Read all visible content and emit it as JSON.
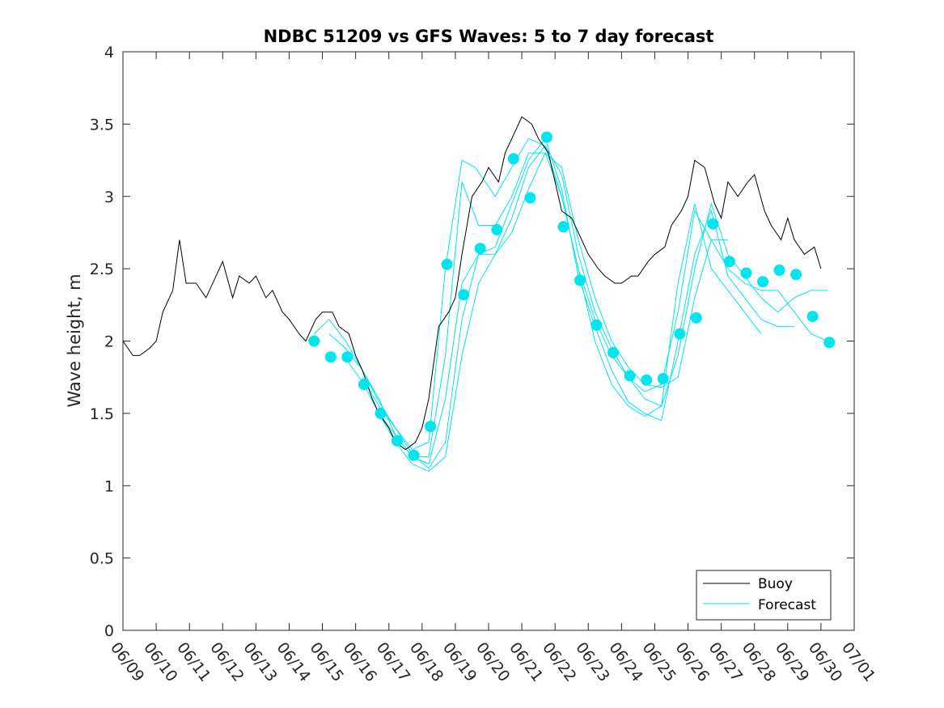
{
  "chart_data": {
    "type": "line",
    "title": "NDBC 51209 vs GFS Waves: 5 to 7 day forecast",
    "xlabel": "",
    "ylabel": "Wave height, m",
    "x_tick_labels": [
      "06/09",
      "06/10",
      "06/11",
      "06/12",
      "06/13",
      "06/14",
      "06/15",
      "06/16",
      "06/17",
      "06/18",
      "06/19",
      "06/20",
      "06/21",
      "06/22",
      "06/23",
      "06/24",
      "06/25",
      "06/26",
      "06/27",
      "06/28",
      "06/29",
      "06/30",
      "07/01"
    ],
    "xlim_days": [
      0,
      22
    ],
    "ylim": [
      0,
      4
    ],
    "y_ticks": [
      "0",
      "0.5",
      "1",
      "1.5",
      "2",
      "2.5",
      "3",
      "3.5",
      "4"
    ],
    "grid": false,
    "legend_position": "bottom-right",
    "colors": {
      "buoy": "#000000",
      "forecast": "#00e5ee",
      "axis": "#262626"
    },
    "series": [
      {
        "name": "Buoy",
        "style": "line",
        "points": [
          [
            0.0,
            2.0
          ],
          [
            0.3,
            1.9
          ],
          [
            0.5,
            1.9
          ],
          [
            0.8,
            1.95
          ],
          [
            1.0,
            2.0
          ],
          [
            1.2,
            2.2
          ],
          [
            1.5,
            2.35
          ],
          [
            1.7,
            2.7
          ],
          [
            1.9,
            2.4
          ],
          [
            2.2,
            2.4
          ],
          [
            2.5,
            2.3
          ],
          [
            2.8,
            2.45
          ],
          [
            3.0,
            2.55
          ],
          [
            3.3,
            2.3
          ],
          [
            3.5,
            2.45
          ],
          [
            3.8,
            2.4
          ],
          [
            4.0,
            2.45
          ],
          [
            4.3,
            2.3
          ],
          [
            4.5,
            2.35
          ],
          [
            4.8,
            2.2
          ],
          [
            5.0,
            2.15
          ],
          [
            5.3,
            2.05
          ],
          [
            5.5,
            2.0
          ],
          [
            5.8,
            2.15
          ],
          [
            6.0,
            2.2
          ],
          [
            6.3,
            2.2
          ],
          [
            6.5,
            2.1
          ],
          [
            6.8,
            2.05
          ],
          [
            7.0,
            1.9
          ],
          [
            7.2,
            1.8
          ],
          [
            7.5,
            1.6
          ],
          [
            7.7,
            1.5
          ],
          [
            8.0,
            1.4
          ],
          [
            8.2,
            1.3
          ],
          [
            8.5,
            1.25
          ],
          [
            8.8,
            1.3
          ],
          [
            9.0,
            1.4
          ],
          [
            9.2,
            1.6
          ],
          [
            9.5,
            2.1
          ],
          [
            9.8,
            2.2
          ],
          [
            10.0,
            2.3
          ],
          [
            10.2,
            2.6
          ],
          [
            10.5,
            3.0
          ],
          [
            10.8,
            3.1
          ],
          [
            11.0,
            3.2
          ],
          [
            11.3,
            3.1
          ],
          [
            11.5,
            3.3
          ],
          [
            11.8,
            3.45
          ],
          [
            12.0,
            3.55
          ],
          [
            12.3,
            3.5
          ],
          [
            12.5,
            3.4
          ],
          [
            12.8,
            3.3
          ],
          [
            13.0,
            3.1
          ],
          [
            13.2,
            2.9
          ],
          [
            13.5,
            2.85
          ],
          [
            13.8,
            2.7
          ],
          [
            14.0,
            2.6
          ],
          [
            14.3,
            2.5
          ],
          [
            14.5,
            2.45
          ],
          [
            14.8,
            2.4
          ],
          [
            15.0,
            2.4
          ],
          [
            15.3,
            2.45
          ],
          [
            15.5,
            2.45
          ],
          [
            15.8,
            2.55
          ],
          [
            16.0,
            2.6
          ],
          [
            16.3,
            2.65
          ],
          [
            16.5,
            2.8
          ],
          [
            16.8,
            2.9
          ],
          [
            17.0,
            3.0
          ],
          [
            17.2,
            3.25
          ],
          [
            17.5,
            3.2
          ],
          [
            17.8,
            2.95
          ],
          [
            18.0,
            2.85
          ],
          [
            18.2,
            3.1
          ],
          [
            18.5,
            3.0
          ],
          [
            18.8,
            3.1
          ],
          [
            19.0,
            3.15
          ],
          [
            19.3,
            2.9
          ],
          [
            19.5,
            2.8
          ],
          [
            19.8,
            2.7
          ],
          [
            20.0,
            2.85
          ],
          [
            20.2,
            2.7
          ],
          [
            20.5,
            2.6
          ],
          [
            20.8,
            2.65
          ],
          [
            21.0,
            2.5
          ]
        ]
      },
      {
        "name": "Forecast",
        "style": "markers",
        "points": [
          [
            5.75,
            2.0
          ],
          [
            6.25,
            1.89
          ],
          [
            6.75,
            1.89
          ],
          [
            7.25,
            1.7
          ],
          [
            7.75,
            1.5
          ],
          [
            8.25,
            1.31
          ],
          [
            8.75,
            1.21
          ],
          [
            9.25,
            1.41
          ],
          [
            9.75,
            2.53
          ],
          [
            10.25,
            2.32
          ],
          [
            10.75,
            2.64
          ],
          [
            11.25,
            2.77
          ],
          [
            11.75,
            3.26
          ],
          [
            12.25,
            2.99
          ],
          [
            12.75,
            3.41
          ],
          [
            13.25,
            2.79
          ],
          [
            13.75,
            2.42
          ],
          [
            14.25,
            2.11
          ],
          [
            14.75,
            1.92
          ],
          [
            15.25,
            1.76
          ],
          [
            15.75,
            1.73
          ],
          [
            16.25,
            1.74
          ],
          [
            16.75,
            2.05
          ],
          [
            17.25,
            2.16
          ],
          [
            17.75,
            2.81
          ],
          [
            18.25,
            2.55
          ],
          [
            18.75,
            2.47
          ],
          [
            19.25,
            2.41
          ],
          [
            19.75,
            2.49
          ],
          [
            20.25,
            2.46
          ],
          [
            20.75,
            2.17
          ],
          [
            21.25,
            1.99
          ]
        ]
      },
      {
        "name": "",
        "style": "line",
        "points": [
          [
            5.75,
            2.05
          ],
          [
            6.2,
            2.15
          ],
          [
            6.7,
            2.0
          ],
          [
            7.2,
            1.8
          ],
          [
            7.7,
            1.58
          ],
          [
            8.2,
            1.4
          ],
          [
            8.7,
            1.25
          ],
          [
            9.2,
            1.3
          ],
          [
            9.7,
            2.5
          ],
          [
            10.2,
            3.25
          ],
          [
            10.6,
            3.2
          ],
          [
            11.2,
            3.0
          ],
          [
            11.7,
            3.2
          ],
          [
            12.2,
            3.4
          ],
          [
            12.7,
            3.35
          ],
          [
            13.2,
            3.0
          ],
          [
            13.7,
            2.5
          ],
          [
            14.2,
            2.15
          ],
          [
            14.7,
            1.9
          ],
          [
            15.2,
            1.75
          ],
          [
            15.7,
            1.65
          ],
          [
            16.2,
            1.7
          ],
          [
            16.7,
            2.2
          ],
          [
            17.2,
            2.9
          ],
          [
            17.7,
            2.7
          ],
          [
            18.2,
            2.7
          ]
        ]
      },
      {
        "name": "",
        "style": "line",
        "points": [
          [
            6.2,
            2.05
          ],
          [
            6.7,
            1.95
          ],
          [
            7.2,
            1.8
          ],
          [
            7.7,
            1.6
          ],
          [
            8.2,
            1.35
          ],
          [
            8.7,
            1.2
          ],
          [
            9.2,
            1.2
          ],
          [
            9.7,
            1.9
          ],
          [
            10.2,
            3.1
          ],
          [
            10.7,
            2.8
          ],
          [
            11.2,
            2.8
          ],
          [
            11.7,
            3.0
          ],
          [
            12.2,
            3.3
          ],
          [
            12.7,
            3.3
          ],
          [
            13.2,
            3.0
          ],
          [
            13.7,
            2.5
          ],
          [
            14.2,
            2.0
          ],
          [
            14.7,
            1.7
          ],
          [
            15.2,
            1.55
          ],
          [
            15.7,
            1.48
          ],
          [
            16.2,
            1.55
          ],
          [
            16.7,
            2.4
          ],
          [
            17.2,
            2.95
          ],
          [
            17.7,
            2.5
          ],
          [
            18.2,
            2.35
          ],
          [
            18.7,
            2.2
          ],
          [
            19.2,
            2.05
          ]
        ]
      },
      {
        "name": "",
        "style": "line",
        "points": [
          [
            6.7,
            1.88
          ],
          [
            7.2,
            1.72
          ],
          [
            7.7,
            1.5
          ],
          [
            8.2,
            1.35
          ],
          [
            8.7,
            1.2
          ],
          [
            9.2,
            1.15
          ],
          [
            9.7,
            1.6
          ],
          [
            10.2,
            2.4
          ],
          [
            10.7,
            2.6
          ],
          [
            11.2,
            2.65
          ],
          [
            11.7,
            2.95
          ],
          [
            12.2,
            3.25
          ],
          [
            12.7,
            3.4
          ],
          [
            13.2,
            3.05
          ],
          [
            13.7,
            2.45
          ],
          [
            14.2,
            2.1
          ],
          [
            14.7,
            1.8
          ],
          [
            15.2,
            1.58
          ],
          [
            15.7,
            1.5
          ],
          [
            16.2,
            1.45
          ],
          [
            16.7,
            2.0
          ],
          [
            17.2,
            2.6
          ],
          [
            17.7,
            2.9
          ],
          [
            18.2,
            2.45
          ],
          [
            18.7,
            2.3
          ],
          [
            19.2,
            2.15
          ],
          [
            19.7,
            2.1
          ],
          [
            20.2,
            2.1
          ]
        ]
      },
      {
        "name": "",
        "style": "line",
        "points": [
          [
            7.2,
            1.75
          ],
          [
            7.7,
            1.55
          ],
          [
            8.2,
            1.4
          ],
          [
            8.7,
            1.22
          ],
          [
            9.2,
            1.12
          ],
          [
            9.7,
            1.3
          ],
          [
            10.2,
            2.15
          ],
          [
            10.7,
            2.6
          ],
          [
            11.2,
            2.6
          ],
          [
            11.7,
            2.85
          ],
          [
            12.2,
            3.2
          ],
          [
            12.7,
            3.35
          ],
          [
            13.2,
            3.15
          ],
          [
            13.7,
            2.6
          ],
          [
            14.2,
            2.2
          ],
          [
            14.7,
            1.95
          ],
          [
            15.2,
            1.75
          ],
          [
            15.7,
            1.6
          ],
          [
            16.2,
            1.55
          ],
          [
            16.7,
            1.9
          ],
          [
            17.2,
            2.5
          ],
          [
            17.7,
            2.95
          ],
          [
            18.2,
            2.6
          ],
          [
            18.7,
            2.45
          ],
          [
            19.2,
            2.3
          ],
          [
            19.7,
            2.2
          ],
          [
            20.2,
            2.3
          ],
          [
            20.7,
            2.35
          ],
          [
            21.2,
            2.35
          ]
        ]
      },
      {
        "name": "",
        "style": "line",
        "points": [
          [
            7.7,
            1.5
          ],
          [
            8.2,
            1.3
          ],
          [
            8.7,
            1.15
          ],
          [
            9.2,
            1.1
          ],
          [
            9.7,
            1.2
          ],
          [
            10.2,
            1.9
          ],
          [
            10.7,
            2.4
          ],
          [
            11.2,
            2.6
          ],
          [
            11.7,
            2.75
          ],
          [
            12.2,
            3.05
          ],
          [
            12.7,
            3.3
          ],
          [
            13.2,
            3.2
          ],
          [
            13.7,
            2.7
          ],
          [
            14.2,
            2.3
          ],
          [
            14.7,
            2.0
          ],
          [
            15.2,
            1.82
          ],
          [
            15.7,
            1.7
          ],
          [
            16.2,
            1.68
          ],
          [
            16.7,
            1.75
          ],
          [
            17.2,
            2.3
          ],
          [
            17.7,
            2.7
          ],
          [
            18.2,
            2.5
          ],
          [
            18.7,
            2.4
          ],
          [
            19.2,
            2.35
          ],
          [
            19.7,
            2.35
          ],
          [
            20.2,
            2.2
          ],
          [
            20.7,
            2.05
          ],
          [
            21.2,
            2.0
          ]
        ]
      }
    ]
  }
}
